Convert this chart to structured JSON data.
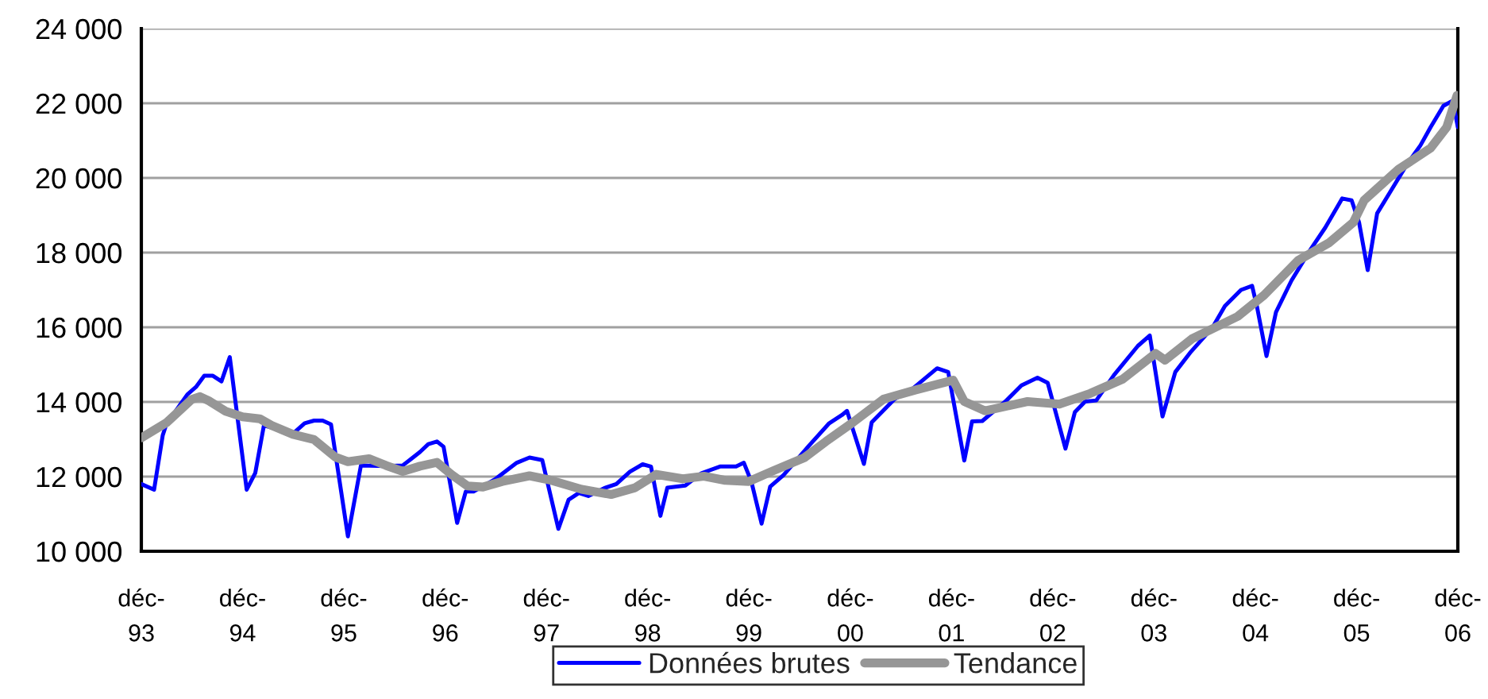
{
  "chart_data": {
    "type": "line",
    "series": [
      {
        "name": "Données brutes",
        "color": "#0000ff",
        "x": [
          "1993-12-01",
          "1994-01-16",
          "1994-02-16",
          "1994-03-01",
          "1994-05-16",
          "1994-06-16",
          "1994-07-16",
          "1994-08-16",
          "1994-09-16",
          "1994-10-16",
          "1994-12-16",
          "1995-01-16",
          "1995-02-16",
          "1995-06-01",
          "1995-07-13",
          "1995-08-16",
          "1995-09-16",
          "1995-10-16",
          "1995-12-16",
          "1996-02-01",
          "1996-05-01",
          "1996-07-01",
          "1996-08-01",
          "1996-09-01",
          "1996-10-01",
          "1996-11-01",
          "1996-11-25",
          "1997-01-13",
          "1997-02-13",
          "1997-03-13",
          "1997-06-01",
          "1997-08-16",
          "1997-10-01",
          "1997-11-16",
          "1998-01-13",
          "1998-02-19",
          "1998-03-28",
          "1998-05-01",
          "1998-07-01",
          "1998-08-10",
          "1998-09-28",
          "1998-11-13",
          "1998-12-13",
          "1999-01-16",
          "1999-02-10",
          "1999-04-16",
          "1999-06-13",
          "1999-08-19",
          "1999-10-16",
          "1999-11-13",
          "1999-12-10",
          "2000-01-16",
          "2000-02-16",
          "2000-04-04",
          "2000-07-10",
          "2000-09-16",
          "2000-11-01",
          "2000-11-19",
          "2001-01-19",
          "2001-02-16",
          "2001-05-10",
          "2001-07-16",
          "2001-10-10",
          "2001-11-19",
          "2002-01-16",
          "2002-02-13",
          "2002-03-22",
          "2002-06-13",
          "2002-08-10",
          "2002-10-07",
          "2002-11-13",
          "2003-01-16",
          "2003-02-19",
          "2003-03-28",
          "2003-05-07",
          "2003-07-10",
          "2003-10-04",
          "2003-11-16",
          "2004-01-01",
          "2004-02-16",
          "2004-04-13",
          "2004-06-28",
          "2004-08-13",
          "2004-10-10",
          "2004-11-19",
          "2004-12-07",
          "2005-01-10",
          "2005-02-13",
          "2005-04-10",
          "2005-06-13",
          "2005-08-10",
          "2005-10-10",
          "2005-11-13",
          "2005-12-10",
          "2006-01-10",
          "2006-02-13",
          "2006-04-04",
          "2006-06-01",
          "2006-07-19",
          "2006-08-25",
          "2006-10-10",
          "2006-11-13",
          "2006-12-01"
        ],
        "values": [
          11800,
          11650,
          13100,
          13400,
          14200,
          14400,
          14700,
          14700,
          14550,
          15200,
          11650,
          12100,
          13370,
          13150,
          13430,
          13500,
          13500,
          13400,
          10400,
          12300,
          12280,
          12300,
          12480,
          12660,
          12870,
          12940,
          12800,
          10760,
          11600,
          11600,
          11940,
          12370,
          12510,
          12440,
          10600,
          11380,
          11560,
          11480,
          11700,
          11800,
          12130,
          12330,
          12270,
          10950,
          11700,
          11760,
          12090,
          12270,
          12270,
          12370,
          11870,
          10740,
          11730,
          12040,
          12870,
          13430,
          13650,
          13760,
          12340,
          13450,
          14080,
          14370,
          14900,
          14800,
          12430,
          13480,
          13490,
          14010,
          14440,
          14650,
          14510,
          12750,
          13730,
          14010,
          14040,
          14720,
          15500,
          15780,
          13610,
          14800,
          15350,
          15980,
          16570,
          17000,
          17110,
          16540,
          15230,
          16400,
          17250,
          18030,
          18670,
          19450,
          19400,
          18800,
          17530,
          19050,
          19660,
          20370,
          20870,
          21360,
          21930,
          22070,
          21360
        ]
      },
      {
        "name": "Tendance",
        "color": "#969696",
        "x": [
          "1993-12-01",
          "1994-03-01",
          "1994-06-01",
          "1994-07-01",
          "1994-08-01",
          "1994-10-01",
          "1994-12-01",
          "1995-02-01",
          "1995-03-16",
          "1995-06-01",
          "1995-08-16",
          "1995-11-01",
          "1995-12-16",
          "1996-03-01",
          "1996-05-01",
          "1996-07-01",
          "1996-09-01",
          "1996-11-01",
          "1996-12-23",
          "1997-02-19",
          "1997-04-16",
          "1997-06-25",
          "1997-10-01",
          "1997-12-13",
          "1998-04-07",
          "1998-07-22",
          "1998-10-16",
          "1999-01-01",
          "1999-04-07",
          "1999-06-22",
          "1999-09-07",
          "1999-12-01",
          "2000-02-28",
          "2000-06-19",
          "2000-09-04",
          "2000-12-10",
          "2001-04-01",
          "2001-07-25",
          "2001-12-07",
          "2002-01-16",
          "2002-04-01",
          "2002-09-01",
          "2002-12-25",
          "2003-04-16",
          "2003-08-10",
          "2003-12-07",
          "2004-01-10",
          "2004-04-16",
          "2004-09-28",
          "2005-01-01",
          "2005-05-04",
          "2005-08-25",
          "2005-11-19",
          "2005-12-28",
          "2006-05-01",
          "2006-08-25",
          "2006-10-22",
          "2006-11-28"
        ],
        "values": [
          13040,
          13440,
          14070,
          14140,
          14030,
          13750,
          13600,
          13550,
          13370,
          13130,
          12990,
          12520,
          12400,
          12480,
          12300,
          12140,
          12280,
          12380,
          12060,
          11750,
          11720,
          11870,
          12020,
          11910,
          11660,
          11520,
          11700,
          12060,
          11940,
          12010,
          11900,
          11870,
          12160,
          12510,
          12940,
          13450,
          14080,
          14320,
          14580,
          14010,
          13760,
          14010,
          13940,
          14230,
          14610,
          15300,
          15120,
          15690,
          16290,
          16860,
          17790,
          18270,
          18810,
          19400,
          20230,
          20800,
          21360,
          22210
        ]
      }
    ],
    "xlim": [
      "1993-12",
      "2006-12"
    ],
    "xticks": [
      {
        "value": "1993-12",
        "label": "déc-\n93"
      },
      {
        "value": "1994-12",
        "label": "déc-\n94"
      },
      {
        "value": "1995-12",
        "label": "déc-\n95"
      },
      {
        "value": "1996-12",
        "label": "déc-\n96"
      },
      {
        "value": "1997-12",
        "label": "déc-\n97"
      },
      {
        "value": "1998-12",
        "label": "déc-\n98"
      },
      {
        "value": "1999-12",
        "label": "déc-\n99"
      },
      {
        "value": "2000-12",
        "label": "déc-\n00"
      },
      {
        "value": "2001-12",
        "label": "déc-\n01"
      },
      {
        "value": "2002-12",
        "label": "déc-\n02"
      },
      {
        "value": "2003-12",
        "label": "déc-\n03"
      },
      {
        "value": "2004-12",
        "label": "déc-\n04"
      },
      {
        "value": "2005-12",
        "label": "déc-\n05"
      },
      {
        "value": "2006-12",
        "label": "déc-\n06"
      }
    ],
    "ylim": [
      10000,
      24000
    ],
    "yticks": [
      {
        "value": 10000,
        "label": "10 000"
      },
      {
        "value": 12000,
        "label": "12 000"
      },
      {
        "value": 14000,
        "label": "14 000"
      },
      {
        "value": 16000,
        "label": "16 000"
      },
      {
        "value": 18000,
        "label": "18 000"
      },
      {
        "value": 20000,
        "label": "20 000"
      },
      {
        "value": 22000,
        "label": "22 000"
      },
      {
        "value": 24000,
        "label": "24 000"
      }
    ],
    "grid": "y",
    "legend": "bottom",
    "marker": "none",
    "line_style": "solid"
  }
}
